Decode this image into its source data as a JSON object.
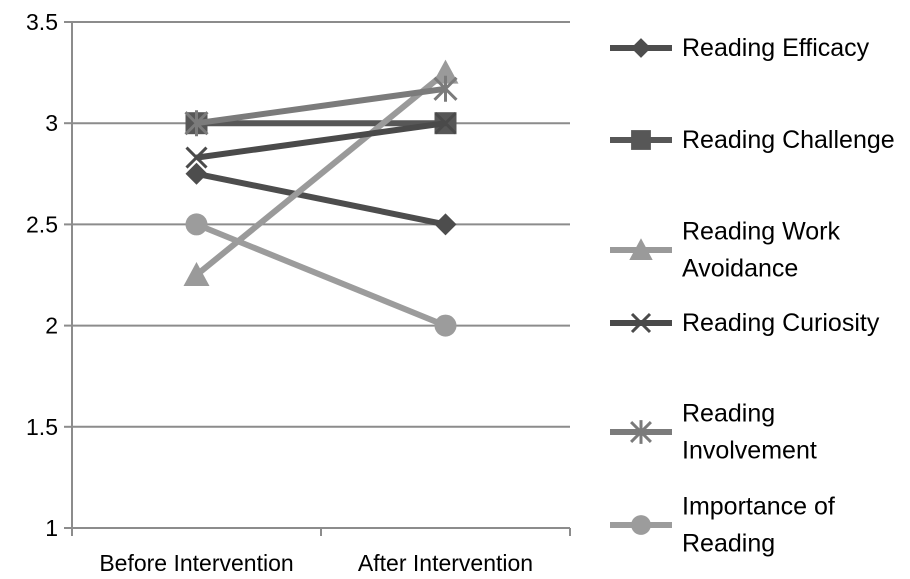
{
  "chart_data": {
    "type": "line",
    "title": "",
    "xlabel": "",
    "ylabel": "",
    "categories": [
      "Before Intervention",
      "After Intervention"
    ],
    "ylim": [
      1,
      3.5
    ],
    "yticks": [
      "1",
      "1.5",
      "2",
      "2.5",
      "3",
      "3.5"
    ],
    "grid": true,
    "legend_position": "right",
    "series": [
      {
        "name": "Reading Efficacy",
        "label_lines": [
          "Reading Efficacy"
        ],
        "values": [
          2.75,
          2.5
        ],
        "marker": "diamond",
        "color": "#4d4d4d"
      },
      {
        "name": "Reading Challenge",
        "label_lines": [
          "Reading Challenge"
        ],
        "values": [
          3.0,
          3.0
        ],
        "marker": "square",
        "color": "#575757"
      },
      {
        "name": "Reading Work Avoidance",
        "label_lines": [
          "Reading Work",
          "Avoidance"
        ],
        "values": [
          2.25,
          3.25
        ],
        "marker": "triangle",
        "color": "#9a9a9a"
      },
      {
        "name": "Reading Curiosity",
        "label_lines": [
          "Reading Curiosity"
        ],
        "values": [
          2.83,
          3.0
        ],
        "marker": "x",
        "color": "#4a4a4a"
      },
      {
        "name": "Reading Involvement",
        "label_lines": [
          "Reading",
          "Involvement"
        ],
        "values": [
          3.0,
          3.17
        ],
        "marker": "star",
        "color": "#7b7b7b"
      },
      {
        "name": "Importance of Reading",
        "label_lines": [
          "Importance of",
          "Reading"
        ],
        "values": [
          2.5,
          2.0
        ],
        "marker": "circle",
        "color": "#9c9c9c"
      }
    ]
  }
}
